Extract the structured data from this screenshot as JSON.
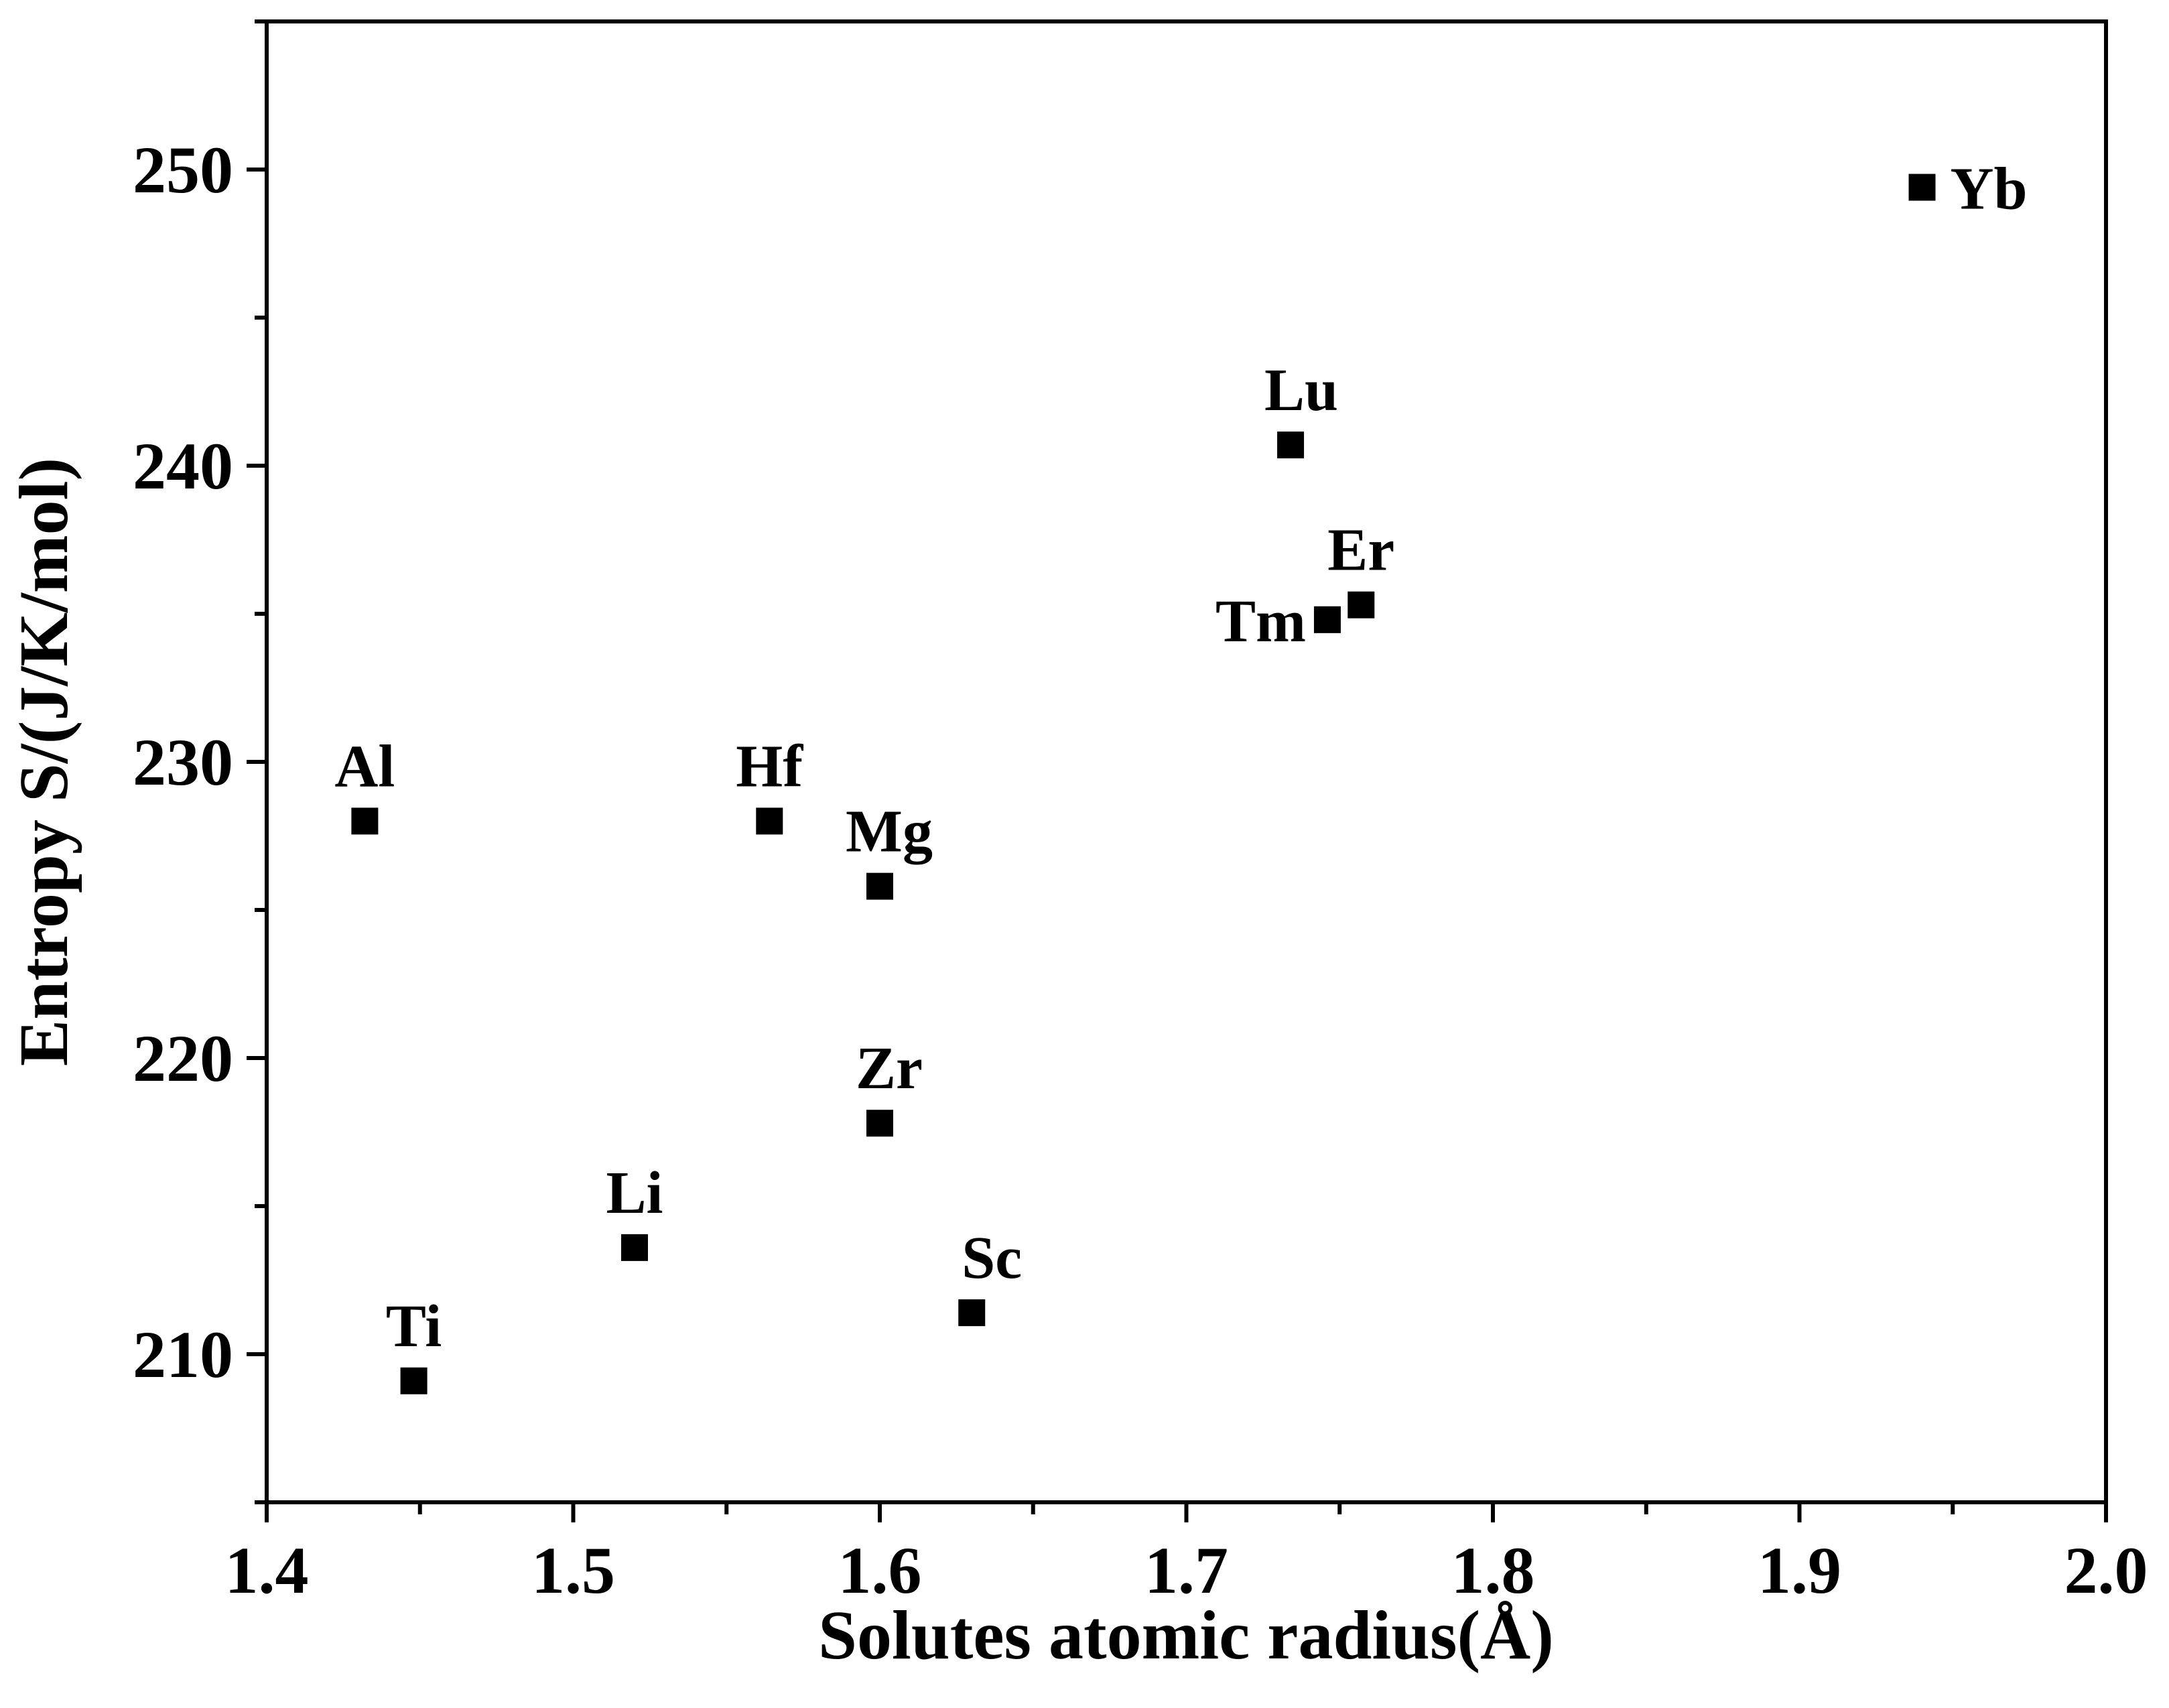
{
  "chart_data": {
    "type": "scatter",
    "xlabel": "Solutes atomic radius(Å)",
    "ylabel": "Entropy S/(J/K/mol)",
    "xlim": [
      1.4,
      2.0
    ],
    "ylim": [
      205,
      255
    ],
    "x_ticks": [
      "1.4",
      "1.5",
      "1.6",
      "1.7",
      "1.8",
      "1.9",
      "2.0"
    ],
    "y_ticks": [
      "210",
      "220",
      "230",
      "240",
      "250"
    ],
    "grid": false,
    "legend": "none",
    "marker": "square",
    "marker_color": "#000000",
    "points": [
      {
        "label": "Al",
        "x": 1.432,
        "y": 228.0
      },
      {
        "label": "Ti",
        "x": 1.448,
        "y": 209.1
      },
      {
        "label": "Li",
        "x": 1.52,
        "y": 213.6
      },
      {
        "label": "Hf",
        "x": 1.564,
        "y": 228.0
      },
      {
        "label": "Mg",
        "x": 1.6,
        "y": 225.8
      },
      {
        "label": "Zr",
        "x": 1.6,
        "y": 217.8
      },
      {
        "label": "Sc",
        "x": 1.63,
        "y": 211.4
      },
      {
        "label": "Lu",
        "x": 1.734,
        "y": 240.7
      },
      {
        "label": "Tm",
        "x": 1.746,
        "y": 234.8
      },
      {
        "label": "Er",
        "x": 1.757,
        "y": 235.3
      },
      {
        "label": "Yb",
        "x": 1.94,
        "y": 249.4
      }
    ]
  }
}
